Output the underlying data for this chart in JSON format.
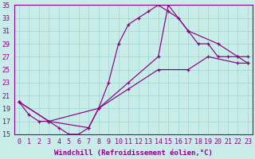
{
  "xlabel": "Windchill (Refroidissement éolien,°C)",
  "bg_color": "#c8ede8",
  "grid_color": "#aadbd4",
  "line_color": "#880088",
  "xlim": [
    -0.5,
    23.5
  ],
  "ylim": [
    15,
    35
  ],
  "xticks": [
    0,
    1,
    2,
    3,
    4,
    5,
    6,
    7,
    8,
    9,
    10,
    11,
    12,
    13,
    14,
    15,
    16,
    17,
    18,
    19,
    20,
    21,
    22,
    23
  ],
  "yticks": [
    15,
    17,
    19,
    21,
    23,
    25,
    27,
    29,
    31,
    33,
    35
  ],
  "line1_x": [
    0,
    1,
    2,
    3,
    4,
    5,
    6,
    7,
    8,
    9,
    10,
    11,
    12,
    13,
    14,
    15,
    16,
    17,
    18,
    19,
    20,
    21,
    22,
    23
  ],
  "line1_y": [
    20,
    18,
    17,
    17,
    16,
    15,
    15,
    16,
    19,
    23,
    29,
    32,
    33,
    34,
    35,
    34,
    33,
    31,
    29,
    29,
    27,
    27,
    27,
    26
  ],
  "line2_x": [
    0,
    3,
    7,
    8,
    11,
    14,
    15,
    17,
    20,
    22,
    23
  ],
  "line2_y": [
    20,
    17,
    16,
    19,
    23,
    27,
    35,
    31,
    29,
    27,
    27
  ],
  "line3_x": [
    0,
    3,
    8,
    11,
    14,
    17,
    19,
    22,
    23
  ],
  "line3_y": [
    20,
    17,
    19,
    22,
    25,
    25,
    27,
    26,
    26
  ],
  "tick_fontsize": 6.0,
  "xlabel_fontsize": 6.5
}
